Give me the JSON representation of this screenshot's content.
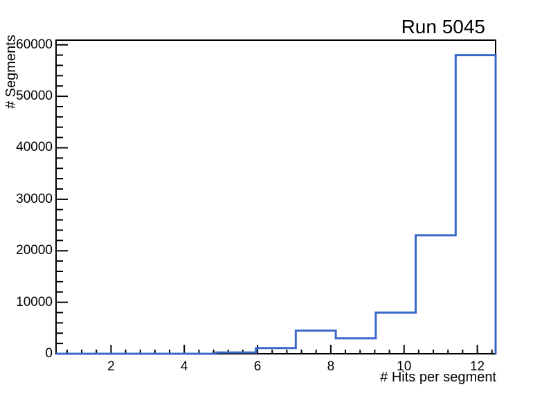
{
  "page": {
    "background": "#ffffff"
  },
  "chart_data": {
    "type": "histogram",
    "title": "Run 5045",
    "xlabel": "# Hits per segment",
    "ylabel": "# Segments",
    "x_range": [
      0.5,
      12.5
    ],
    "y_range": [
      0,
      60900
    ],
    "n_bins": 11,
    "bin_edges": [
      0.5,
      1.591,
      2.682,
      3.773,
      4.864,
      5.955,
      7.045,
      8.136,
      9.227,
      10.318,
      11.409,
      12.5
    ],
    "bin_values": [
      0,
      0,
      0,
      0,
      250,
      1100,
      4500,
      3000,
      8000,
      23000,
      58000
    ],
    "x_ticks": [
      2,
      4,
      6,
      8,
      10,
      12
    ],
    "x_tick_labels": [
      "2",
      "4",
      "6",
      "8",
      "10",
      "12"
    ],
    "x_minor_step": 0.4,
    "y_ticks": [
      0,
      10000,
      20000,
      30000,
      40000,
      50000,
      60000
    ],
    "y_tick_labels": [
      "0",
      "10000",
      "20000",
      "30000",
      "40000",
      "50000",
      "60000"
    ],
    "y_minor_step": 2000,
    "grid": false,
    "legend": false,
    "line_color": "#3a67c8",
    "axis_color": "#000000",
    "background_color": "#ffffff"
  }
}
